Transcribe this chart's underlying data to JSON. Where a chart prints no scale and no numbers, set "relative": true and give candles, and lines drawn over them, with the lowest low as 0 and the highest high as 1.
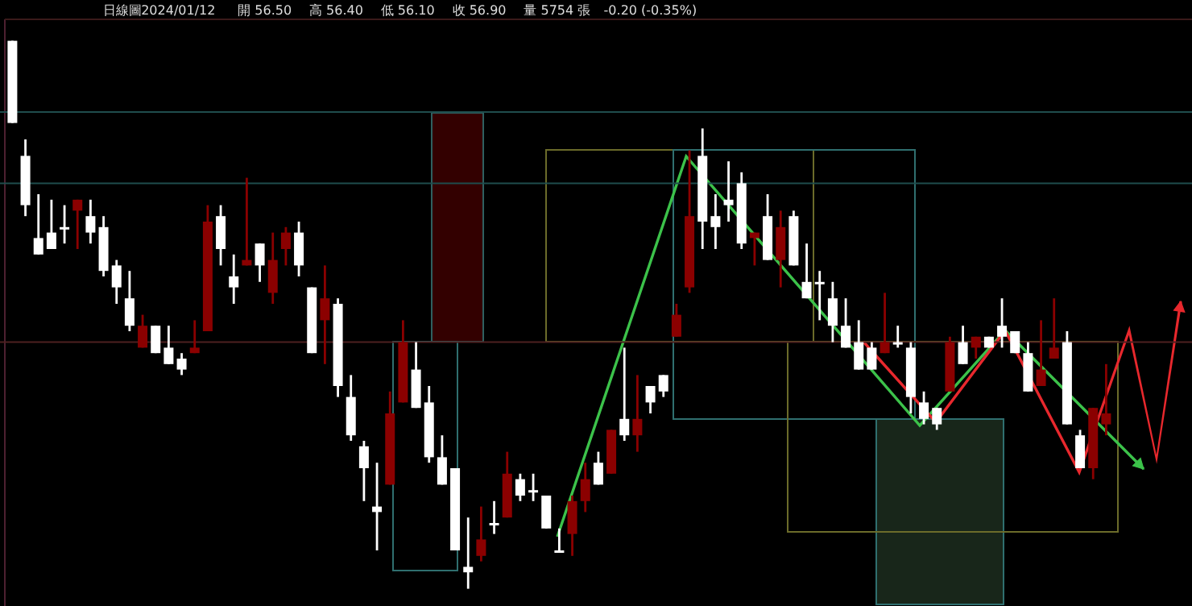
{
  "chart_data": [
    {
      "type": "candlestick",
      "title": "日線圖",
      "subtitle": "2024/01/12",
      "annotations": [
        "開 56.50",
        "高 56.40",
        "低 56.10",
        "收 56.90",
        "量 5754 張",
        "-0.20 (-0.35%)"
      ],
      "relative": true,
      "categories": [
        null,
        null,
        null,
        null,
        null,
        null,
        null,
        null,
        null,
        null,
        null,
        null,
        null,
        null,
        null,
        null,
        null,
        null,
        null,
        null,
        null,
        null,
        null,
        null,
        null,
        null,
        null,
        null,
        null,
        null,
        null,
        null,
        null,
        null,
        null,
        null,
        null,
        null,
        null,
        null,
        null,
        null,
        null,
        null,
        null,
        null,
        null,
        null,
        null,
        null,
        null,
        null,
        null,
        null,
        null,
        null,
        null,
        null,
        null,
        null,
        null,
        null,
        null,
        null,
        null,
        null,
        null,
        null,
        null,
        null,
        null,
        null,
        null,
        null,
        null,
        null,
        null,
        null,
        null,
        null,
        null,
        null,
        null,
        null,
        null
      ],
      "ohlc": [
        [
          1.0,
          1.0,
          0.85,
          0.85
        ],
        [
          0.79,
          0.82,
          0.68,
          0.7
        ],
        [
          0.64,
          0.72,
          0.61,
          0.61
        ],
        [
          0.65,
          0.71,
          0.62,
          0.62
        ],
        [
          0.66,
          0.7,
          0.63,
          0.66
        ],
        [
          0.69,
          0.71,
          0.62,
          0.71
        ],
        [
          0.68,
          0.71,
          0.63,
          0.65
        ],
        [
          0.66,
          0.68,
          0.57,
          0.58
        ],
        [
          0.59,
          0.6,
          0.52,
          0.55
        ],
        [
          0.53,
          0.58,
          0.47,
          0.48
        ],
        [
          0.44,
          0.5,
          0.44,
          0.48
        ],
        [
          0.48,
          0.48,
          0.43,
          0.43
        ],
        [
          0.44,
          0.48,
          0.41,
          0.41
        ],
        [
          0.42,
          0.43,
          0.39,
          0.4
        ],
        [
          0.43,
          0.49,
          0.43,
          0.44
        ],
        [
          0.47,
          0.7,
          0.47,
          0.67
        ],
        [
          0.68,
          0.7,
          0.59,
          0.62
        ],
        [
          0.57,
          0.61,
          0.52,
          0.55
        ],
        [
          0.59,
          0.75,
          0.59,
          0.6
        ],
        [
          0.63,
          0.63,
          0.56,
          0.59
        ],
        [
          0.54,
          0.65,
          0.52,
          0.6
        ],
        [
          0.62,
          0.66,
          0.59,
          0.65
        ],
        [
          0.65,
          0.67,
          0.57,
          0.59
        ],
        [
          0.55,
          0.55,
          0.43,
          0.43
        ],
        [
          0.49,
          0.59,
          0.41,
          0.53
        ],
        [
          0.52,
          0.53,
          0.35,
          0.37
        ],
        [
          0.35,
          0.39,
          0.27,
          0.28
        ],
        [
          0.26,
          0.27,
          0.16,
          0.22
        ],
        [
          0.15,
          0.23,
          0.07,
          0.14
        ],
        [
          0.19,
          0.36,
          0.19,
          0.32
        ],
        [
          0.34,
          0.49,
          0.34,
          0.45
        ],
        [
          0.4,
          0.45,
          0.33,
          0.33
        ],
        [
          0.34,
          0.37,
          0.23,
          0.24
        ],
        [
          0.24,
          0.28,
          0.19,
          0.19
        ],
        [
          0.22,
          0.22,
          0.07,
          0.07
        ],
        [
          0.04,
          0.13,
          0.0,
          0.03
        ],
        [
          0.06,
          0.15,
          0.05,
          0.09
        ],
        [
          0.12,
          0.16,
          0.1,
          0.12
        ],
        [
          0.13,
          0.25,
          0.13,
          0.21
        ],
        [
          0.2,
          0.21,
          0.16,
          0.17
        ],
        [
          0.18,
          0.21,
          0.16,
          0.18
        ],
        [
          0.17,
          0.17,
          0.11,
          0.11
        ],
        [
          0.07,
          0.11,
          0.07,
          0.07
        ],
        [
          0.1,
          0.17,
          0.06,
          0.16
        ],
        [
          0.16,
          0.23,
          0.14,
          0.2
        ],
        [
          0.23,
          0.25,
          0.19,
          0.19
        ],
        [
          0.21,
          0.29,
          0.21,
          0.29
        ],
        [
          0.31,
          0.44,
          0.27,
          0.28
        ],
        [
          0.28,
          0.39,
          0.25,
          0.31
        ],
        [
          0.37,
          0.37,
          0.32,
          0.34
        ],
        [
          0.39,
          0.39,
          0.35,
          0.36
        ],
        [
          0.46,
          0.52,
          0.46,
          0.5
        ],
        [
          0.55,
          0.8,
          0.54,
          0.68
        ],
        [
          0.79,
          0.84,
          0.62,
          0.67
        ],
        [
          0.68,
          0.72,
          0.62,
          0.66
        ],
        [
          0.71,
          0.78,
          0.67,
          0.7
        ],
        [
          0.74,
          0.76,
          0.62,
          0.63
        ],
        [
          0.64,
          0.65,
          0.59,
          0.65
        ],
        [
          0.68,
          0.72,
          0.6,
          0.6
        ],
        [
          0.6,
          0.69,
          0.55,
          0.66
        ],
        [
          0.68,
          0.69,
          0.59,
          0.59
        ],
        [
          0.56,
          0.63,
          0.53,
          0.53
        ],
        [
          0.56,
          0.58,
          0.49,
          0.56
        ],
        [
          0.53,
          0.56,
          0.45,
          0.48
        ],
        [
          0.48,
          0.53,
          0.44,
          0.44
        ],
        [
          0.45,
          0.49,
          0.4,
          0.4
        ],
        [
          0.44,
          0.45,
          0.4,
          0.4
        ],
        [
          0.43,
          0.54,
          0.43,
          0.45
        ],
        [
          0.45,
          0.48,
          0.44,
          0.45
        ],
        [
          0.44,
          0.45,
          0.32,
          0.35
        ],
        [
          0.34,
          0.36,
          0.3,
          0.31
        ],
        [
          0.33,
          0.33,
          0.29,
          0.3
        ],
        [
          0.36,
          0.46,
          0.36,
          0.45
        ],
        [
          0.45,
          0.48,
          0.41,
          0.41
        ],
        [
          0.44,
          0.46,
          0.42,
          0.46
        ],
        [
          0.46,
          0.46,
          0.44,
          0.44
        ],
        [
          0.48,
          0.53,
          0.44,
          0.46
        ],
        [
          0.47,
          0.47,
          0.43,
          0.43
        ],
        [
          0.43,
          0.45,
          0.36,
          0.36
        ],
        [
          0.37,
          0.49,
          0.37,
          0.4
        ],
        [
          0.42,
          0.53,
          0.42,
          0.44
        ],
        [
          0.45,
          0.47,
          0.3,
          0.3
        ],
        [
          0.28,
          0.29,
          0.22,
          0.22
        ],
        [
          0.22,
          0.33,
          0.2,
          0.33
        ],
        [
          0.3,
          0.41,
          0.28,
          0.32
        ]
      ],
      "colors": [
        "#ffffff",
        "#ffffff",
        "#ffffff",
        "#ffffff",
        "#ffffff",
        "#8b0000",
        "#ffffff",
        "#ffffff",
        "#ffffff",
        "#ffffff",
        "#8b0000",
        "#ffffff",
        "#ffffff",
        "#ffffff",
        "#8b0000",
        "#8b0000",
        "#ffffff",
        "#ffffff",
        "#8b0000",
        "#ffffff",
        "#8b0000",
        "#8b0000",
        "#ffffff",
        "#ffffff",
        "#8b0000",
        "#ffffff",
        "#ffffff",
        "#ffffff",
        "#ffffff",
        "#8b0000",
        "#8b0000",
        "#ffffff",
        "#ffffff",
        "#ffffff",
        "#ffffff",
        "#ffffff",
        "#8b0000",
        "#ffffff",
        "#8b0000",
        "#ffffff",
        "#ffffff",
        "#ffffff",
        "#ffffff",
        "#8b0000",
        "#8b0000",
        "#ffffff",
        "#8b0000",
        "#ffffff",
        "#8b0000",
        "#ffffff",
        "#ffffff",
        "#8b0000",
        "#8b0000",
        "#ffffff",
        "#ffffff",
        "#ffffff",
        "#ffffff",
        "#8b0000",
        "#ffffff",
        "#8b0000",
        "#ffffff",
        "#ffffff",
        "#ffffff",
        "#ffffff",
        "#ffffff",
        "#ffffff",
        "#ffffff",
        "#8b0000",
        "#ffffff",
        "#ffffff",
        "#ffffff",
        "#ffffff",
        "#8b0000",
        "#ffffff",
        "#8b0000",
        "#ffffff",
        "#ffffff",
        "#ffffff",
        "#ffffff",
        "#8b0000",
        "#8b0000",
        "#ffffff",
        "#ffffff",
        "#8b0000",
        "#8b0000"
      ],
      "ref_lines": [
        {
          "axis": "y",
          "value": 0.87,
          "color": "#1f4d4d"
        },
        {
          "axis": "y",
          "value": 0.74,
          "color": "#1f4d4d"
        },
        {
          "axis": "y",
          "value": 0.45,
          "color": "#4d2020"
        }
      ]
    }
  ]
}
